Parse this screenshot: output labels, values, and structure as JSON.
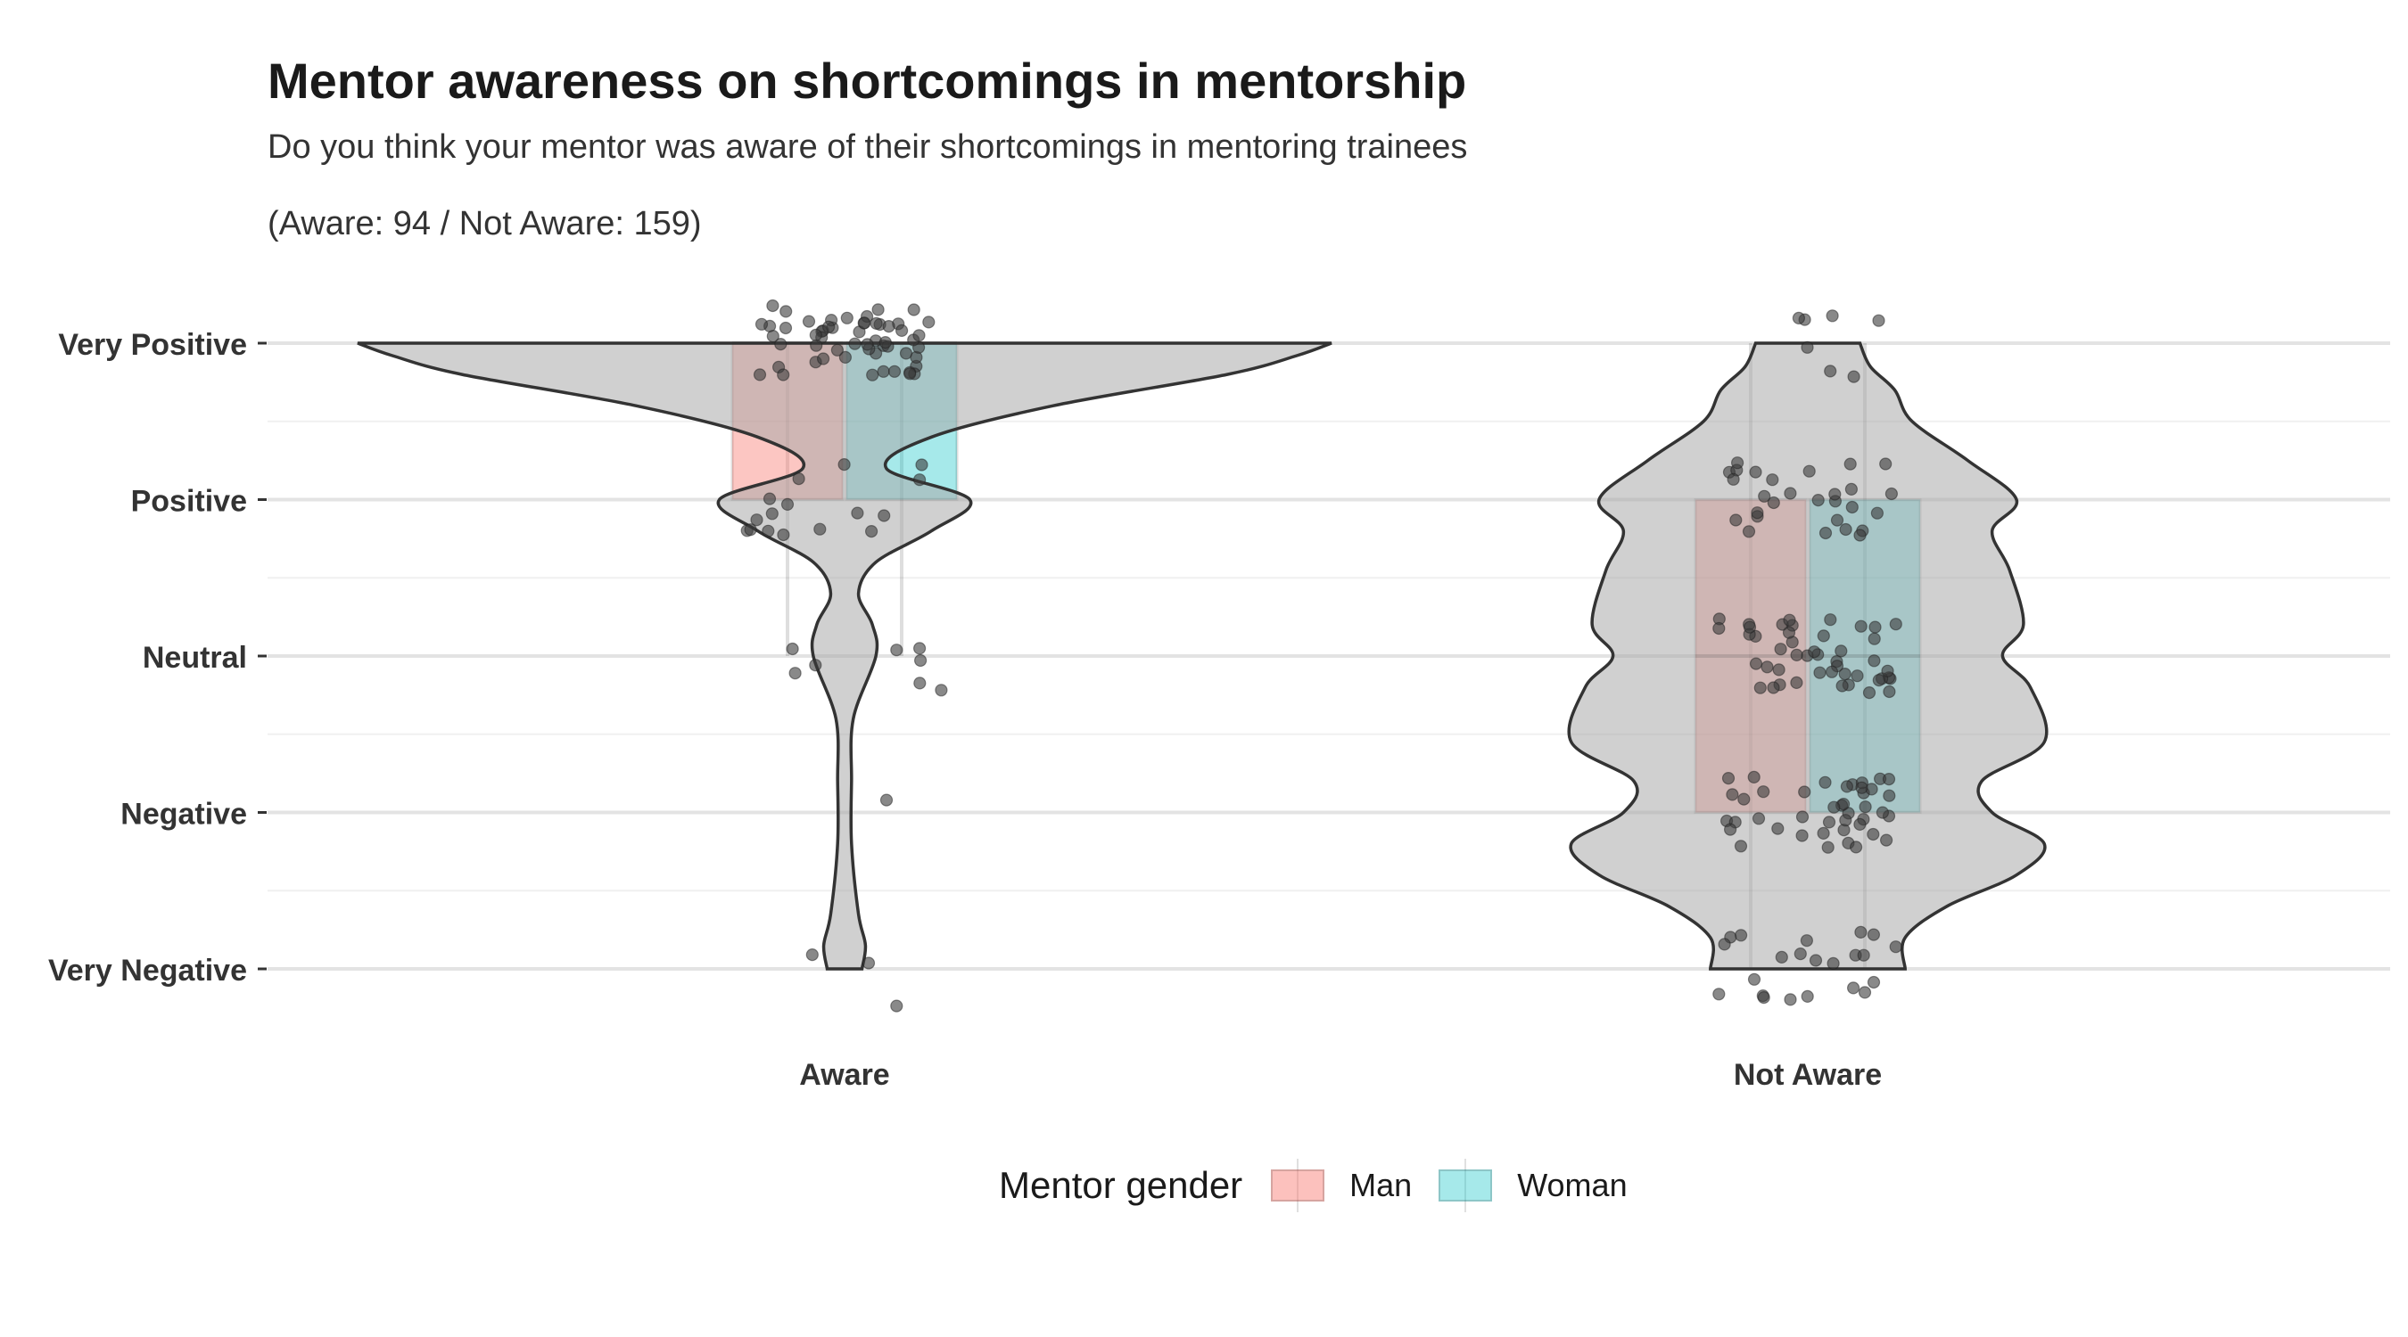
{
  "title": "Mentor awareness on shortcomings in mentorship",
  "subtitle": "Do you think your mentor was aware of their shortcomings in mentoring trainees",
  "counts_text": "(Aware: 94 / Not Aware: 159)",
  "legend": {
    "title": "Mentor gender",
    "items": [
      {
        "label": "Man",
        "color": "#F8766D"
      },
      {
        "label": "Woman",
        "color": "#00BFC4"
      }
    ]
  },
  "colors": {
    "violin_fill": "#bfbfbf",
    "violin_stroke": "#333333",
    "point": "#3a3a3a",
    "grid_major": "#e3e3e3",
    "grid_minor": "#f0f0f0"
  },
  "chart_data": {
    "type": "violin",
    "categories": [
      "Aware",
      "Not Aware"
    ],
    "y_levels": [
      "Very Negative",
      "Negative",
      "Neutral",
      "Positive",
      "Very Positive"
    ],
    "ylim": [
      1,
      5
    ],
    "group_counts": {
      "Aware": 94,
      "Not Aware": 159
    },
    "violins": [
      {
        "category": "Aware",
        "profile": [
          [
            1.0,
            0.05
          ],
          [
            1.15,
            0.06
          ],
          [
            1.35,
            0.04
          ],
          [
            1.8,
            0.02
          ],
          [
            2.2,
            0.02
          ],
          [
            2.6,
            0.025
          ],
          [
            3.0,
            0.09
          ],
          [
            3.2,
            0.08
          ],
          [
            3.4,
            0.04
          ],
          [
            3.6,
            0.09
          ],
          [
            3.8,
            0.25
          ],
          [
            4.0,
            0.36
          ],
          [
            4.2,
            0.12
          ],
          [
            4.4,
            0.25
          ],
          [
            4.6,
            0.6
          ],
          [
            4.8,
            1.1
          ],
          [
            4.92,
            1.3
          ],
          [
            5.0,
            1.4
          ]
        ]
      },
      {
        "category": "Not Aware",
        "profile": [
          [
            1.0,
            0.28
          ],
          [
            1.2,
            0.28
          ],
          [
            1.4,
            0.4
          ],
          [
            1.6,
            0.6
          ],
          [
            1.8,
            0.68
          ],
          [
            2.0,
            0.53
          ],
          [
            2.2,
            0.5
          ],
          [
            2.45,
            0.68
          ],
          [
            2.8,
            0.64
          ],
          [
            3.0,
            0.56
          ],
          [
            3.2,
            0.62
          ],
          [
            3.55,
            0.58
          ],
          [
            3.8,
            0.53
          ],
          [
            4.0,
            0.6
          ],
          [
            4.25,
            0.46
          ],
          [
            4.5,
            0.3
          ],
          [
            4.7,
            0.25
          ],
          [
            4.85,
            0.18
          ],
          [
            5.0,
            0.15
          ]
        ]
      }
    ],
    "series": [
      {
        "name": "Man",
        "color": "#F8766D",
        "boxes": [
          {
            "category": "Aware",
            "q1": 4,
            "median": 5,
            "q3": 5,
            "whisker_low": 3,
            "whisker_high": 5
          },
          {
            "category": "Not Aware",
            "q1": 2,
            "median": 3,
            "q3": 4,
            "whisker_low": 1,
            "whisker_high": 5
          }
        ]
      },
      {
        "name": "Woman",
        "color": "#00BFC4",
        "boxes": [
          {
            "category": "Aware",
            "q1": 4,
            "median": 5,
            "q3": 5,
            "whisker_low": 3,
            "whisker_high": 5
          },
          {
            "category": "Not Aware",
            "q1": 2,
            "median": 3,
            "q3": 4,
            "whisker_low": 1,
            "whisker_high": 5
          }
        ]
      }
    ],
    "grid": true,
    "legend_position": "bottom"
  }
}
